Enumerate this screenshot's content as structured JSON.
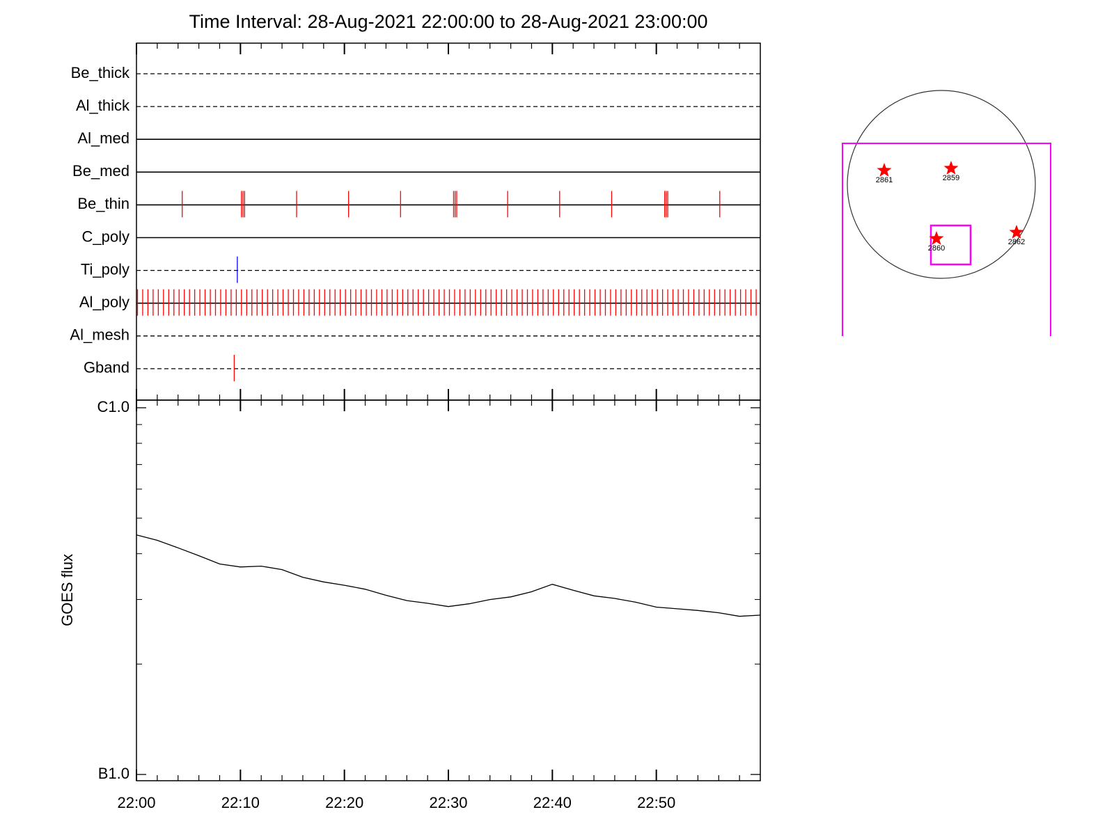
{
  "chart_data": [
    {
      "type": "timeline",
      "title": "Time Interval: 28-Aug-2021 22:00:00 to 28-Aug-2021 23:00:00",
      "categories": [
        "Be_thick",
        "Al_thick",
        "Al_med",
        "Be_med",
        "Be_thin",
        "C_poly",
        "Ti_poly",
        "Al_poly",
        "Al_mesh",
        "Gband"
      ],
      "line_styles": [
        "dashed",
        "dashed",
        "solid",
        "solid",
        "solid",
        "solid",
        "dashed",
        "solid",
        "dashed",
        "dashed"
      ],
      "event_colors": [
        "#ff0000",
        "#ff0000",
        "#ff0000",
        "#ff0000",
        "#ff0000",
        "#ff0000",
        "#0000ff",
        "#ff0000",
        "#ff0000",
        "#ff0000"
      ],
      "events": [
        [],
        [],
        [],
        [],
        [
          4.4,
          10.1,
          10.25,
          10.4,
          15.4,
          20.4,
          25.4,
          30.5,
          30.65,
          30.8,
          35.7,
          40.7,
          45.7,
          50.8,
          50.95,
          51.1,
          56.1
        ],
        [],
        [
          9.7
        ],
        [
          0.1,
          0.6,
          1.1,
          1.6,
          2.1,
          2.6,
          3.1,
          3.6,
          4.1,
          4.6,
          5.1,
          5.6,
          6.1,
          6.6,
          7.1,
          7.6,
          8.1,
          8.6,
          9.1,
          9.6,
          10.1,
          10.6,
          11.1,
          11.6,
          12.1,
          12.6,
          13.1,
          13.6,
          14.1,
          14.6,
          15.1,
          15.6,
          16.1,
          16.6,
          17.1,
          17.6,
          18.1,
          18.6,
          19.1,
          19.6,
          20.1,
          20.6,
          21.1,
          21.6,
          22.1,
          22.6,
          23.1,
          23.6,
          24.1,
          24.6,
          25.1,
          25.6,
          26.1,
          26.6,
          27.1,
          27.6,
          28.1,
          28.6,
          29.1,
          29.6,
          30.1,
          30.6,
          31.1,
          31.6,
          32.1,
          32.6,
          33.1,
          33.6,
          34.1,
          34.6,
          35.1,
          35.6,
          36.1,
          36.6,
          37.1,
          37.6,
          38.1,
          38.6,
          39.1,
          39.6,
          40.1,
          40.6,
          41.1,
          41.6,
          42.1,
          42.6,
          43.1,
          43.6,
          44.1,
          44.6,
          45.1,
          45.6,
          46.1,
          46.6,
          47.1,
          47.6,
          48.1,
          48.6,
          49.1,
          49.6,
          50.1,
          50.6,
          51.1,
          51.6,
          52.1,
          52.6,
          53.1,
          53.6,
          54.1,
          54.6,
          55.1,
          55.6,
          56.1,
          56.6,
          57.1,
          57.6,
          58.1,
          58.6,
          59.1,
          59.6
        ],
        [],
        [
          9.4
        ]
      ],
      "xlim": [
        0,
        60
      ]
    },
    {
      "type": "line",
      "ylabel": "GOES flux",
      "color": "#000000",
      "x": [
        0,
        2,
        4,
        6,
        8,
        10,
        12,
        14,
        16,
        18,
        20,
        22,
        24,
        26,
        28,
        30,
        32,
        34,
        36,
        38,
        40,
        42,
        44,
        46,
        48,
        50,
        52,
        54,
        56,
        58,
        60
      ],
      "values": [
        4.5e-07,
        4.35e-07,
        4.15e-07,
        3.95e-07,
        3.75e-07,
        3.68e-07,
        3.7e-07,
        3.62e-07,
        3.45e-07,
        3.35e-07,
        3.28e-07,
        3.2e-07,
        3.08e-07,
        2.98e-07,
        2.93e-07,
        2.87e-07,
        2.92e-07,
        3e-07,
        3.05e-07,
        3.15e-07,
        3.3e-07,
        3.18e-07,
        3.07e-07,
        3.02e-07,
        2.95e-07,
        2.86e-07,
        2.83e-07,
        2.8e-07,
        2.76e-07,
        2.7e-07,
        2.72e-07
      ],
      "xlim": [
        0,
        60
      ],
      "xticks": [
        {
          "value": 0,
          "label": "22:00"
        },
        {
          "value": 10,
          "label": "22:10"
        },
        {
          "value": 20,
          "label": "22:20"
        },
        {
          "value": 30,
          "label": "22:30"
        },
        {
          "value": 40,
          "label": "22:40"
        },
        {
          "value": 50,
          "label": "22:50"
        }
      ],
      "xminor_step": 2,
      "ylim": [
        1e-07,
        1e-06
      ],
      "log_y": true,
      "yticks": [
        {
          "value": 1e-07,
          "label": "B1.0"
        },
        {
          "value": 1e-06,
          "label": "C1.0"
        }
      ],
      "yminorticks": [
        2e-07,
        3e-07,
        4e-07,
        5e-07,
        6e-07,
        7e-07,
        8e-07,
        9e-07
      ]
    },
    {
      "type": "map",
      "regions": [
        "2861",
        "2859",
        "2860",
        "2862"
      ],
      "marker_color": "#ff0000",
      "fov_color": "#ff00ff"
    }
  ]
}
